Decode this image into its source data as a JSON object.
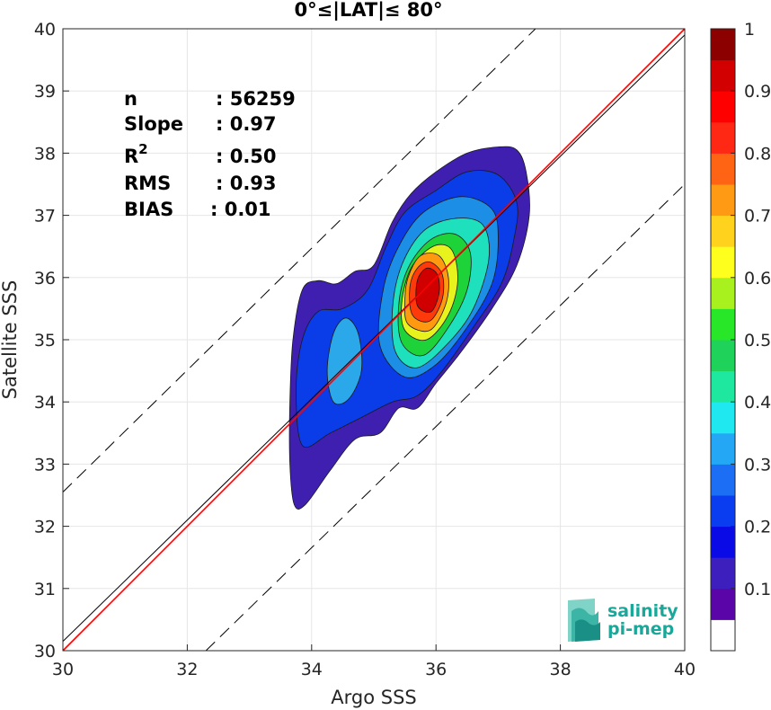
{
  "chart_data": {
    "type": "heatmap",
    "title": "0°≤|LAT|≤ 80°",
    "xlabel": "Argo SSS",
    "ylabel": "Satellite SSS",
    "xlim": [
      30,
      40
    ],
    "ylim": [
      30,
      40
    ],
    "xticks": [
      "30",
      "32",
      "34",
      "36",
      "38",
      "40"
    ],
    "yticks": [
      "30",
      "31",
      "32",
      "33",
      "34",
      "35",
      "36",
      "37",
      "38",
      "39",
      "40"
    ],
    "grid": true,
    "stats": [
      {
        "label": "n",
        "value": ": 56259"
      },
      {
        "label": "Slope",
        "value": ": 0.97"
      },
      {
        "label": "R",
        "sup": "2",
        "value": ": 0.50"
      },
      {
        "label": "RMS",
        "value": ": 0.93"
      },
      {
        "label": "BIAS",
        "value": ": 0.01"
      }
    ],
    "lines": {
      "identity": {
        "x": [
          30,
          40
        ],
        "y": [
          30.15,
          39.9
        ],
        "color": "#000000"
      },
      "fit": {
        "x": [
          30,
          40
        ],
        "y": [
          30.0,
          40.0
        ],
        "color": "#ff0000"
      },
      "upper_bound": {
        "x": [
          30,
          37.6
        ],
        "y": [
          32.55,
          40.0
        ],
        "color": "#000000",
        "dash": true
      },
      "lower_bound": {
        "x": [
          32.3,
          40
        ],
        "y": [
          30.0,
          37.5
        ],
        "color": "#000000",
        "dash": true
      }
    },
    "density_peak": {
      "x": 35.9,
      "y": 35.9
    },
    "contour_levels": [
      {
        "level": 0.05,
        "color": "#3f1fb0",
        "points": [
          [
            33.72,
            32.35
          ],
          [
            33.9,
            32.35
          ],
          [
            34.3,
            32.9
          ],
          [
            34.7,
            33.4
          ],
          [
            35.1,
            33.5
          ],
          [
            35.4,
            33.9
          ],
          [
            35.7,
            33.9
          ],
          [
            36.0,
            34.3
          ],
          [
            36.4,
            34.8
          ],
          [
            36.9,
            35.5
          ],
          [
            37.3,
            36.2
          ],
          [
            37.5,
            37.0
          ],
          [
            37.45,
            37.7
          ],
          [
            37.3,
            38.05
          ],
          [
            37.0,
            38.1
          ],
          [
            36.5,
            38.0
          ],
          [
            36.0,
            37.7
          ],
          [
            35.6,
            37.35
          ],
          [
            35.3,
            36.9
          ],
          [
            35.0,
            36.2
          ],
          [
            34.7,
            36.1
          ],
          [
            34.4,
            35.9
          ],
          [
            34.1,
            35.95
          ],
          [
            33.85,
            35.8
          ],
          [
            33.7,
            35.0
          ],
          [
            33.65,
            34.0
          ],
          [
            33.65,
            33.0
          ]
        ]
      },
      {
        "level": 0.2,
        "color": "#0a3ce8",
        "points": [
          [
            33.85,
            33.3
          ],
          [
            34.3,
            33.5
          ],
          [
            34.8,
            33.75
          ],
          [
            35.3,
            34.0
          ],
          [
            35.7,
            34.1
          ],
          [
            36.1,
            34.5
          ],
          [
            36.6,
            35.2
          ],
          [
            37.05,
            35.9
          ],
          [
            37.25,
            36.6
          ],
          [
            37.3,
            37.2
          ],
          [
            37.0,
            37.65
          ],
          [
            36.5,
            37.7
          ],
          [
            36.0,
            37.4
          ],
          [
            35.5,
            37.05
          ],
          [
            35.2,
            36.5
          ],
          [
            34.9,
            35.8
          ],
          [
            34.5,
            35.5
          ],
          [
            34.1,
            35.45
          ],
          [
            33.85,
            35.0
          ],
          [
            33.75,
            34.2
          ]
        ]
      },
      {
        "level": 0.3,
        "color": "#1c8ee6",
        "points": [
          [
            35.1,
            34.9
          ],
          [
            35.5,
            34.4
          ],
          [
            36.0,
            34.6
          ],
          [
            36.5,
            35.2
          ],
          [
            36.9,
            35.9
          ],
          [
            37.0,
            36.6
          ],
          [
            36.9,
            37.1
          ],
          [
            36.4,
            37.3
          ],
          [
            35.8,
            37.05
          ],
          [
            35.4,
            36.5
          ],
          [
            35.15,
            35.8
          ]
        ]
      },
      {
        "level": 0.3,
        "color": "#2aa8ea",
        "points": [
          [
            34.35,
            34.0
          ],
          [
            34.6,
            34.05
          ],
          [
            34.8,
            34.5
          ],
          [
            34.75,
            35.1
          ],
          [
            34.55,
            35.35
          ],
          [
            34.35,
            35.1
          ],
          [
            34.25,
            34.5
          ]
        ]
      },
      {
        "level": 0.4,
        "color": "#1fe0bd",
        "points": [
          [
            35.35,
            34.8
          ],
          [
            35.7,
            34.55
          ],
          [
            36.2,
            34.95
          ],
          [
            36.6,
            35.5
          ],
          [
            36.85,
            36.3
          ],
          [
            36.75,
            36.85
          ],
          [
            36.3,
            36.95
          ],
          [
            35.8,
            36.75
          ],
          [
            35.45,
            36.2
          ],
          [
            35.3,
            35.5
          ]
        ]
      },
      {
        "level": 0.5,
        "color": "#1ed23a",
        "points": [
          [
            35.45,
            34.95
          ],
          [
            35.8,
            34.75
          ],
          [
            36.2,
            35.2
          ],
          [
            36.5,
            35.8
          ],
          [
            36.55,
            36.4
          ],
          [
            36.3,
            36.7
          ],
          [
            35.9,
            36.6
          ],
          [
            35.55,
            36.15
          ],
          [
            35.4,
            35.55
          ]
        ]
      },
      {
        "level": 0.6,
        "color": "#e8f21c",
        "points": [
          [
            35.5,
            35.15
          ],
          [
            35.85,
            35.0
          ],
          [
            36.2,
            35.4
          ],
          [
            36.35,
            35.95
          ],
          [
            36.25,
            36.45
          ],
          [
            35.95,
            36.5
          ],
          [
            35.6,
            36.15
          ],
          [
            35.45,
            35.6
          ]
        ]
      },
      {
        "level": 0.7,
        "color": "#ff9a10",
        "points": [
          [
            35.55,
            35.25
          ],
          [
            35.9,
            35.15
          ],
          [
            36.15,
            35.55
          ],
          [
            36.2,
            36.0
          ],
          [
            36.05,
            36.35
          ],
          [
            35.75,
            36.35
          ],
          [
            35.55,
            36.0
          ],
          [
            35.5,
            35.6
          ]
        ]
      },
      {
        "level": 0.8,
        "color": "#ff3a0a",
        "points": [
          [
            35.62,
            35.4
          ],
          [
            35.9,
            35.3
          ],
          [
            36.1,
            35.65
          ],
          [
            36.1,
            36.05
          ],
          [
            35.9,
            36.25
          ],
          [
            35.7,
            36.15
          ],
          [
            35.58,
            35.85
          ]
        ]
      },
      {
        "level": 0.9,
        "color": "#d00000",
        "points": [
          [
            35.7,
            35.55
          ],
          [
            35.92,
            35.45
          ],
          [
            36.05,
            35.75
          ],
          [
            36.02,
            36.05
          ],
          [
            35.85,
            36.15
          ],
          [
            35.7,
            35.95
          ]
        ]
      }
    ],
    "colorbar": {
      "ticks": [
        "0.1",
        "0.2",
        "0.3",
        "0.4",
        "0.5",
        "0.6",
        "0.7",
        "0.8",
        "0.9",
        "1"
      ],
      "colors": [
        "#ffffff",
        "#5a05a8",
        "#3c1fbd",
        "#0a0ae6",
        "#0a3cf0",
        "#1c6ef5",
        "#24a8f5",
        "#20e8f0",
        "#1ee8a0",
        "#1ed25a",
        "#28e628",
        "#a8f01e",
        "#ffff1e",
        "#ffd21e",
        "#ff9a14",
        "#ff6414",
        "#ff2814",
        "#ff0000",
        "#d20000",
        "#8c0000"
      ]
    },
    "logo": {
      "line1": "salinity",
      "line2": "pi-mep",
      "color": "#1aa89a"
    }
  }
}
